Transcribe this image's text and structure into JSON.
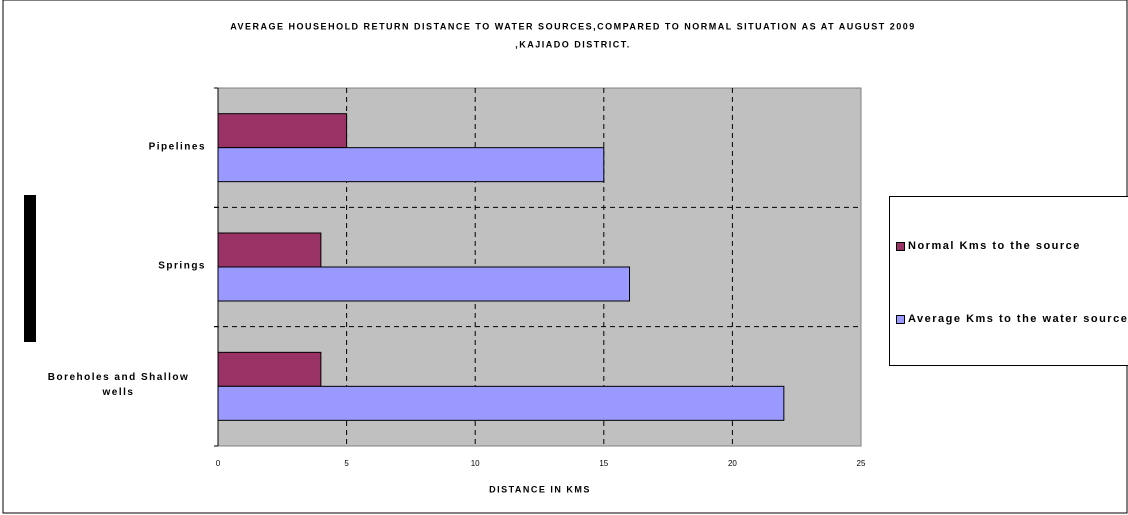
{
  "chart_data": {
    "type": "bar",
    "orientation": "horizontal",
    "title": [
      "AVERAGE HOUSEHOLD RETURN DISTANCE TO WATER SOURCES,COMPARED TO NORMAL SITUATION AS AT AUGUST 2009",
      ",KAJIADO DISTRICT."
    ],
    "x_label": "DISTANCE IN KMS",
    "categories": [
      "Pipelines",
      "Springs",
      "Boreholes and Shallow wells"
    ],
    "series": [
      {
        "name": "Normal Kms to the source",
        "color": "#993366",
        "values": [
          5,
          4,
          4
        ]
      },
      {
        "name": "Average Kms to the water source",
        "color": "#9999ff",
        "values": [
          15,
          16,
          22
        ]
      }
    ],
    "xlim": [
      0,
      25
    ],
    "xticks": [
      0,
      5,
      10,
      15,
      20,
      25
    ],
    "grid": true,
    "legend": "right"
  }
}
